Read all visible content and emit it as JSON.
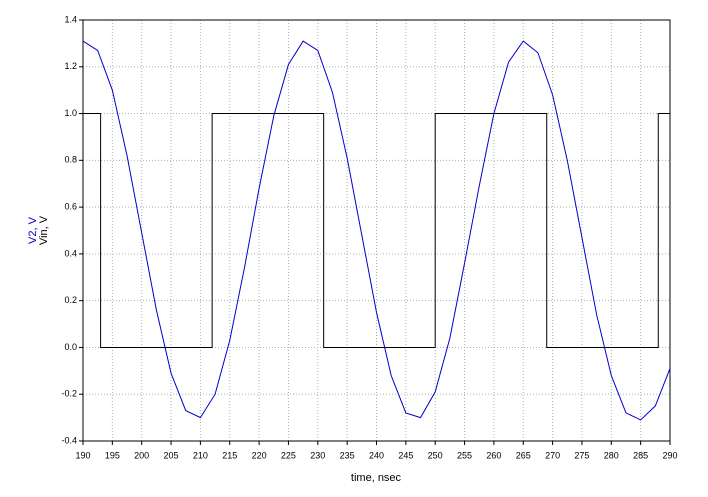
{
  "chart_data": {
    "type": "line",
    "x_label": "time, nsec",
    "y_labels": [
      {
        "text": "V2, V",
        "color": "#0000cc"
      },
      {
        "text": "Vin, V",
        "color": "#000000"
      }
    ],
    "xlim": [
      190,
      290
    ],
    "xticks": [
      190,
      195,
      200,
      205,
      210,
      215,
      220,
      225,
      230,
      235,
      240,
      245,
      250,
      255,
      260,
      265,
      270,
      275,
      280,
      285,
      290
    ],
    "ylim": [
      -0.4,
      1.4
    ],
    "yticks": [
      -0.4,
      -0.2,
      {
        "value": 0,
        "label": "0.0"
      },
      0.2,
      0.4,
      0.6,
      0.8,
      {
        "value": 1,
        "label": "1.0"
      },
      1.2,
      1.4
    ],
    "grid": true,
    "series": [
      {
        "name": "V2",
        "color": "#0000cc",
        "x": [
          190,
          192.5,
          195,
          197.5,
          200,
          202.5,
          205,
          207.5,
          210,
          212.5,
          215,
          217.5,
          220,
          222.5,
          225,
          227.5,
          230,
          232.5,
          235,
          237.5,
          240,
          242.5,
          245,
          247.5,
          250,
          252.5,
          255,
          257.5,
          260,
          262.5,
          265,
          267.5,
          270,
          272.5,
          275,
          277.5,
          280,
          282.5,
          285,
          287.5,
          290
        ],
        "values": [
          1.31,
          1.27,
          1.1,
          0.82,
          0.49,
          0.16,
          -0.11,
          -0.27,
          -0.3,
          -0.2,
          0.03,
          0.34,
          0.68,
          0.99,
          1.21,
          1.31,
          1.27,
          1.09,
          0.81,
          0.48,
          0.15,
          -0.12,
          -0.28,
          -0.3,
          -0.19,
          0.04,
          0.36,
          0.69,
          1.0,
          1.22,
          1.31,
          1.26,
          1.08,
          0.8,
          0.47,
          0.14,
          -0.12,
          -0.28,
          -0.31,
          -0.25,
          -0.09
        ]
      },
      {
        "name": "Vin",
        "color": "#000000",
        "x": [
          190,
          193,
          193,
          212,
          212,
          231,
          231,
          250,
          250,
          269,
          269,
          288,
          288,
          290
        ],
        "values": [
          1,
          1,
          0,
          0,
          1,
          1,
          0,
          0,
          1,
          1,
          0,
          0,
          1,
          1
        ]
      }
    ]
  }
}
